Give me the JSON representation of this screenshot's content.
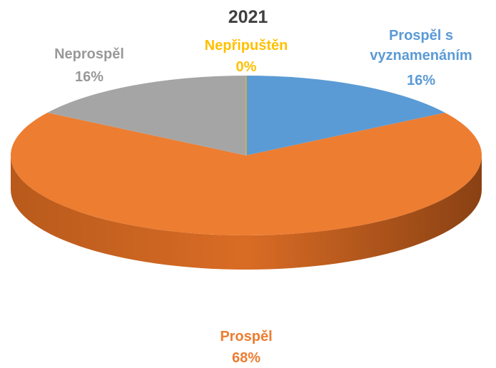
{
  "chart_data": {
    "type": "pie3d",
    "title": "2021",
    "categories": [
      "Prospěl s vyznamenáním",
      "Prospěl",
      "Neprospěl",
      "Nepřipuštěn"
    ],
    "values": [
      16,
      68,
      16,
      0
    ],
    "value_labels": [
      "16%",
      "68%",
      "16%",
      "0%"
    ],
    "colors": [
      "#5b9bd5",
      "#ed7d31",
      "#a5a5a5",
      "#ffc000"
    ]
  }
}
